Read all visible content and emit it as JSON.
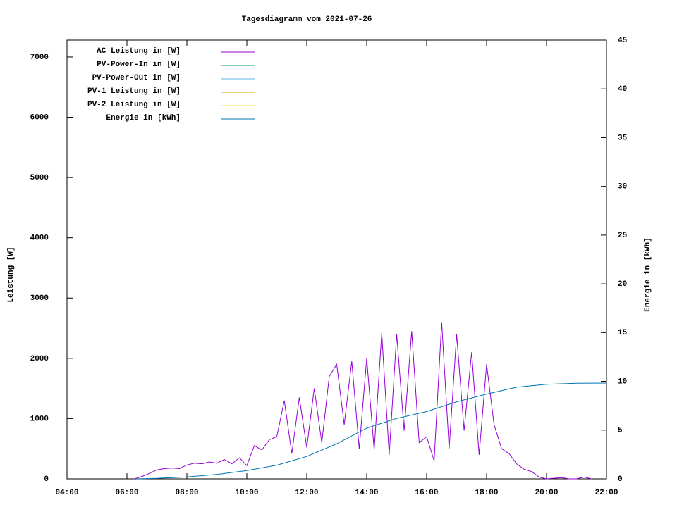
{
  "chart_data": {
    "type": "line",
    "title": "Tagesdiagramm vom 2021-07-26",
    "ylabel": "Leistung [W]",
    "y2label": "Energie in [kWh]",
    "xlim": [
      4,
      22
    ],
    "xticks": [
      {
        "value": 4,
        "label": "04:00"
      },
      {
        "value": 6,
        "label": "06:00"
      },
      {
        "value": 8,
        "label": "08:00"
      },
      {
        "value": 10,
        "label": "10:00"
      },
      {
        "value": 12,
        "label": "12:00"
      },
      {
        "value": 14,
        "label": "14:00"
      },
      {
        "value": 16,
        "label": "16:00"
      },
      {
        "value": 18,
        "label": "18:00"
      },
      {
        "value": 20,
        "label": "20:00"
      },
      {
        "value": 22,
        "label": "22:00"
      }
    ],
    "ylim": [
      0,
      7280
    ],
    "yticks": [
      0,
      1000,
      2000,
      3000,
      4000,
      5000,
      6000,
      7000
    ],
    "y2lim": [
      0,
      45
    ],
    "y2ticks": [
      0,
      5,
      10,
      15,
      20,
      25,
      30,
      35,
      40,
      45
    ],
    "legend": "top-left",
    "series": [
      {
        "name": "AC Leistung in [W]",
        "color": "#9400d3",
        "x": [
          6.25,
          6.5,
          6.75,
          7,
          7.25,
          7.5,
          7.75,
          8,
          8.25,
          8.5,
          8.75,
          9,
          9.25,
          9.5,
          9.75,
          10,
          10.25,
          10.5,
          10.75,
          11,
          11.25,
          11.5,
          11.75,
          12,
          12.25,
          12.5,
          12.75,
          13,
          13.25,
          13.5,
          13.75,
          14,
          14.25,
          14.5,
          14.75,
          15,
          15.25,
          15.5,
          15.75,
          16,
          16.25,
          16.5,
          16.75,
          17,
          17.25,
          17.5,
          17.75,
          18,
          18.25,
          18.5,
          18.75,
          19,
          19.25,
          19.5,
          19.75,
          20,
          20.25,
          20.5,
          20.75,
          21,
          21.25,
          21.5
        ],
        "values": [
          0,
          40,
          90,
          150,
          170,
          180,
          170,
          230,
          260,
          250,
          280,
          260,
          320,
          250,
          350,
          220,
          550,
          480,
          650,
          700,
          1300,
          420,
          1350,
          520,
          1500,
          600,
          1700,
          1900,
          900,
          1950,
          500,
          2000,
          480,
          2420,
          400,
          2400,
          800,
          2450,
          600,
          700,
          300,
          2600,
          500,
          2400,
          800,
          2100,
          400,
          1900,
          900,
          500,
          420,
          250,
          160,
          120,
          30,
          0,
          10,
          20,
          0,
          0,
          30,
          0
        ]
      },
      {
        "name": "PV-Power-In in [W]",
        "color": "#009e73",
        "x": [],
        "values": []
      },
      {
        "name": "PV-Power-Out in [W]",
        "color": "#56b4e9",
        "x": [],
        "values": []
      },
      {
        "name": "PV-1 Leistung in [W]",
        "color": "#e69f00",
        "x": [],
        "values": []
      },
      {
        "name": "PV-2 Leistung in [W]",
        "color": "#f0e442",
        "x": [],
        "values": []
      },
      {
        "name": "Energie in [kWh]",
        "color": "#0072b2",
        "axis": "y2",
        "x": [
          6.3,
          7,
          8,
          9,
          10,
          11,
          12,
          13,
          14,
          15,
          16,
          17,
          18,
          19,
          20,
          21,
          22
        ],
        "values": [
          0,
          0.05,
          0.2,
          0.45,
          0.85,
          1.4,
          2.3,
          3.6,
          5.2,
          6.2,
          6.9,
          7.9,
          8.7,
          9.4,
          9.7,
          9.8,
          9.82
        ]
      }
    ]
  }
}
